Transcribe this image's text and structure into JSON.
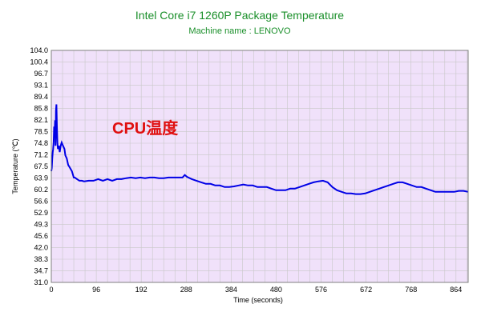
{
  "chart_data": {
    "type": "line",
    "title": "Intel Core i7 1260P Package Temperature",
    "subtitle": "Machine name : LENOVO",
    "xlabel": "Time (seconds)",
    "ylabel": "Temperature (℃)",
    "annotation": "CPU温度",
    "xlim": [
      0,
      890
    ],
    "ylim": [
      31.0,
      104.0
    ],
    "x_ticks": [
      0,
      96,
      192,
      288,
      384,
      480,
      576,
      672,
      768,
      864
    ],
    "y_ticks": [
      "31.0",
      "34.7",
      "38.3",
      "42.0",
      "45.6",
      "49.3",
      "52.9",
      "56.6",
      "60.2",
      "63.9",
      "67.5",
      "71.2",
      "74.8",
      "78.5",
      "82.1",
      "85.8",
      "89.4",
      "93.1",
      "96.7",
      "100.4",
      "104.0"
    ],
    "grid": true,
    "series": [
      {
        "x": [
          0,
          1,
          2,
          3,
          4,
          5,
          6,
          7,
          8,
          9,
          10,
          11,
          12,
          13,
          14,
          16,
          18,
          20,
          22,
          25,
          28,
          30,
          33,
          36,
          40,
          44,
          48,
          50,
          55,
          60,
          65,
          70,
          80,
          90,
          100,
          110,
          120,
          130,
          140,
          150,
          160,
          170,
          180,
          190,
          200,
          210,
          220,
          230,
          240,
          250,
          260,
          270,
          280,
          285,
          290,
          300,
          310,
          320,
          330,
          340,
          350,
          360,
          370,
          380,
          390,
          400,
          410,
          420,
          430,
          440,
          450,
          460,
          470,
          480,
          490,
          500,
          510,
          520,
          530,
          540,
          550,
          560,
          570,
          580,
          590,
          600,
          610,
          620,
          630,
          640,
          650,
          660,
          670,
          680,
          690,
          700,
          710,
          720,
          730,
          740,
          750,
          760,
          770,
          780,
          790,
          800,
          810,
          820,
          830,
          840,
          850,
          860,
          870,
          880,
          890
        ],
        "y": [
          66,
          67,
          70,
          72,
          73,
          75,
          80,
          78,
          82,
          74,
          85,
          87,
          80,
          75,
          73,
          74,
          72,
          74,
          75,
          74,
          73,
          71,
          70,
          68,
          67,
          66,
          64,
          64,
          63.5,
          63,
          63,
          62.8,
          63,
          63,
          63.5,
          63,
          63.5,
          63,
          63.5,
          63.5,
          63.8,
          64,
          63.8,
          64,
          63.8,
          64,
          64,
          63.8,
          63.8,
          64,
          64,
          64,
          64,
          64.8,
          64.2,
          63.5,
          63,
          62.5,
          62,
          62,
          61.5,
          61.5,
          61,
          61,
          61.2,
          61.5,
          61.8,
          61.5,
          61.5,
          61,
          61,
          61,
          60.5,
          60,
          60,
          60,
          60.5,
          60.5,
          61,
          61.5,
          62,
          62.5,
          62.8,
          63,
          62.5,
          61,
          60,
          59.5,
          59,
          59,
          58.8,
          58.8,
          59,
          59.5,
          60,
          60.5,
          61,
          61.5,
          62,
          62.5,
          62.5,
          62,
          61.5,
          61,
          61,
          60.5,
          60,
          59.5,
          59.5,
          59.5,
          59.5,
          59.5,
          59.8,
          59.8,
          59.5
        ],
        "color": "#0000e6"
      }
    ],
    "colors": {
      "plot_bg": "#f0e1fa",
      "grid": "#c8c8c8",
      "title": "#1a8f2a",
      "annotation": "#e01010",
      "line": "#0000e6"
    }
  }
}
